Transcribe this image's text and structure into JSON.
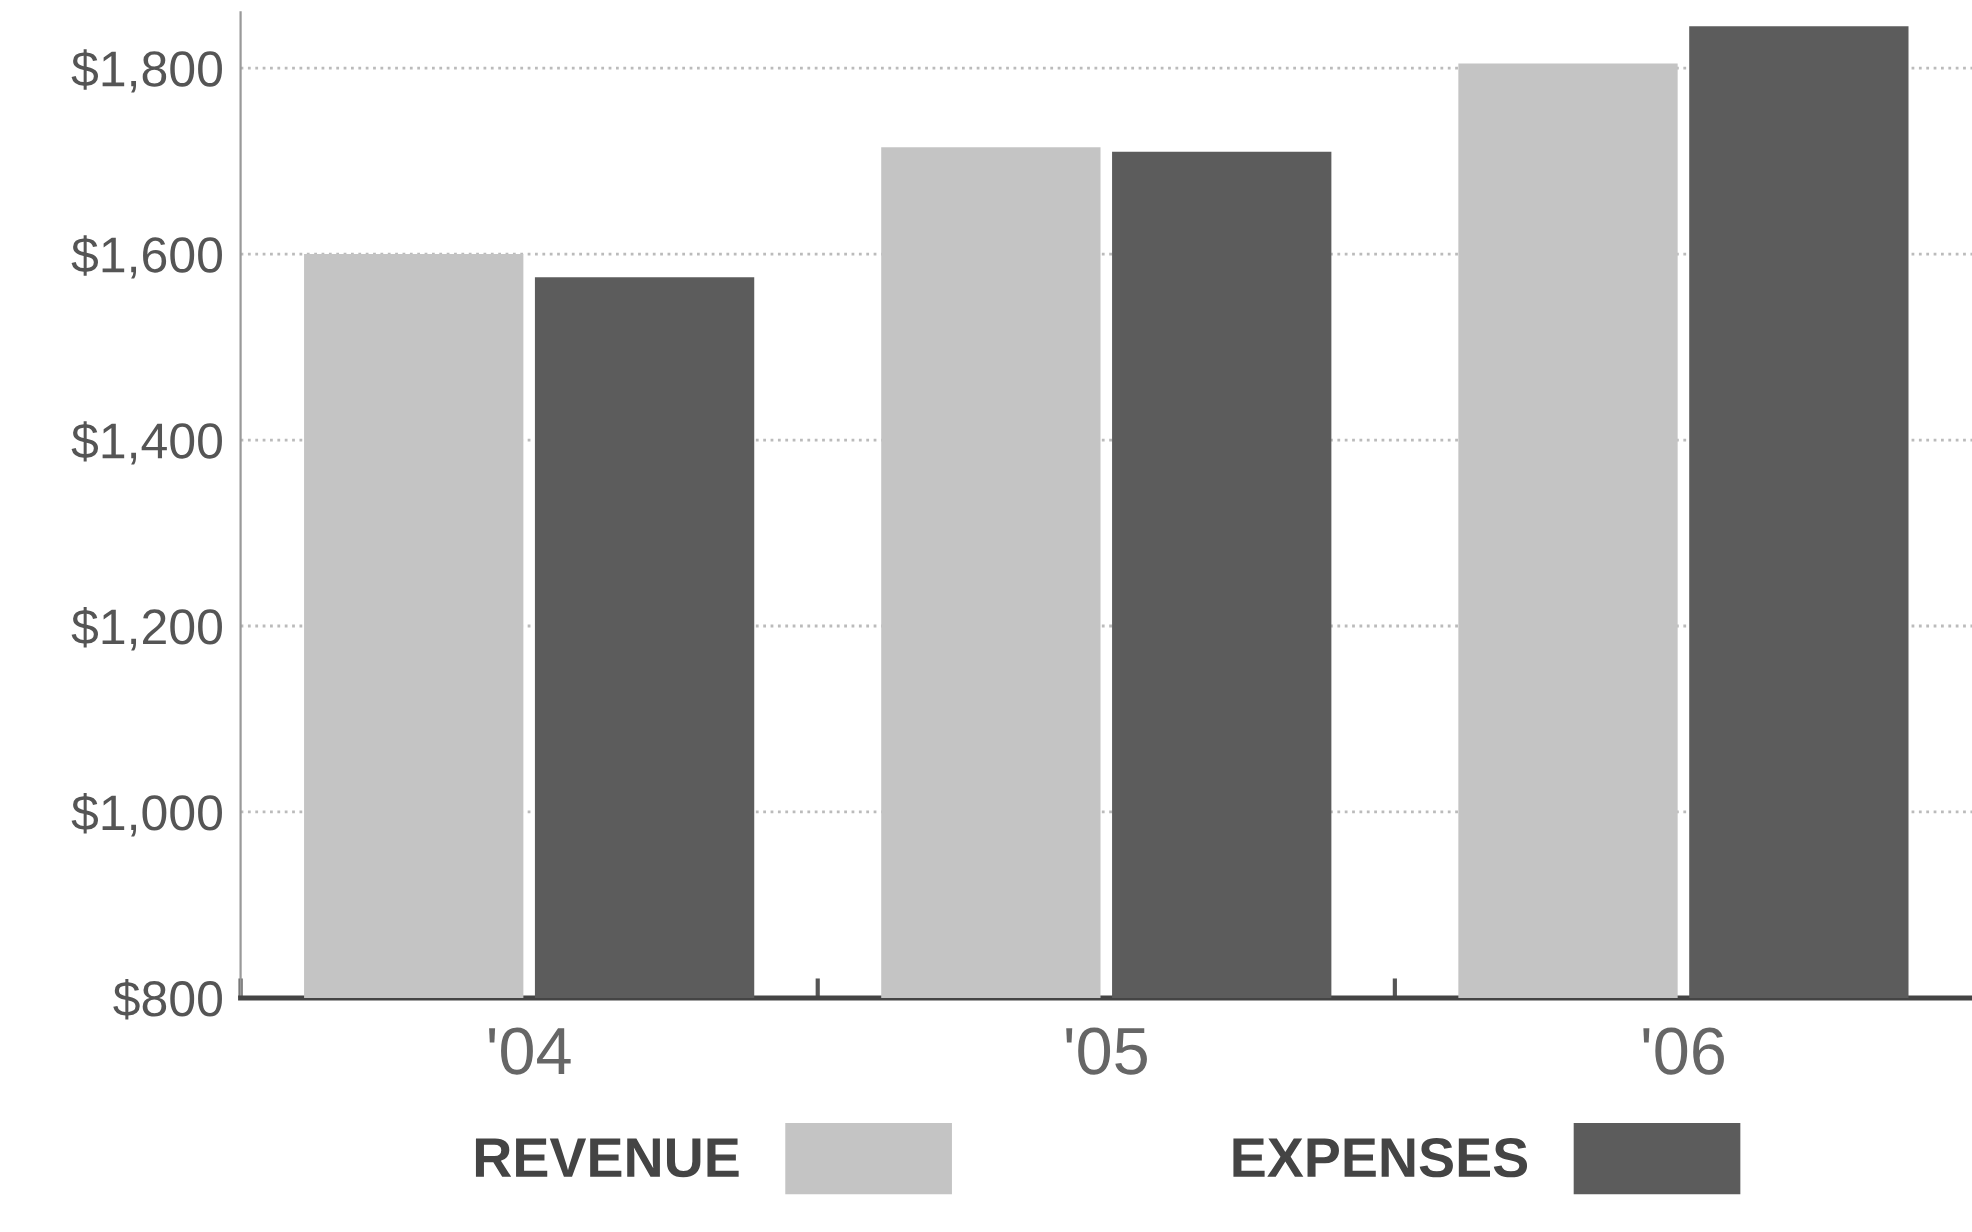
{
  "chart_data": {
    "type": "bar",
    "categories": [
      "'04",
      "'05",
      "'06"
    ],
    "series": [
      {
        "name": "REVENUE",
        "color": "#c4c4c4",
        "values": [
          1600,
          1715,
          1805
        ]
      },
      {
        "name": "EXPENSES",
        "color": "#5c5c5c",
        "values": [
          1575,
          1710,
          1845
        ]
      }
    ],
    "ylim": [
      800,
      1860
    ],
    "yticks": [
      {
        "value": 800,
        "label": "$800"
      },
      {
        "value": 1000,
        "label": "$1,000"
      },
      {
        "value": 1200,
        "label": "$1,200"
      },
      {
        "value": 1400,
        "label": "$1,400"
      },
      {
        "value": 1600,
        "label": "$1,600"
      },
      {
        "value": 1800,
        "label": "$1,800"
      }
    ],
    "grid": "y",
    "legend": "bottom"
  }
}
